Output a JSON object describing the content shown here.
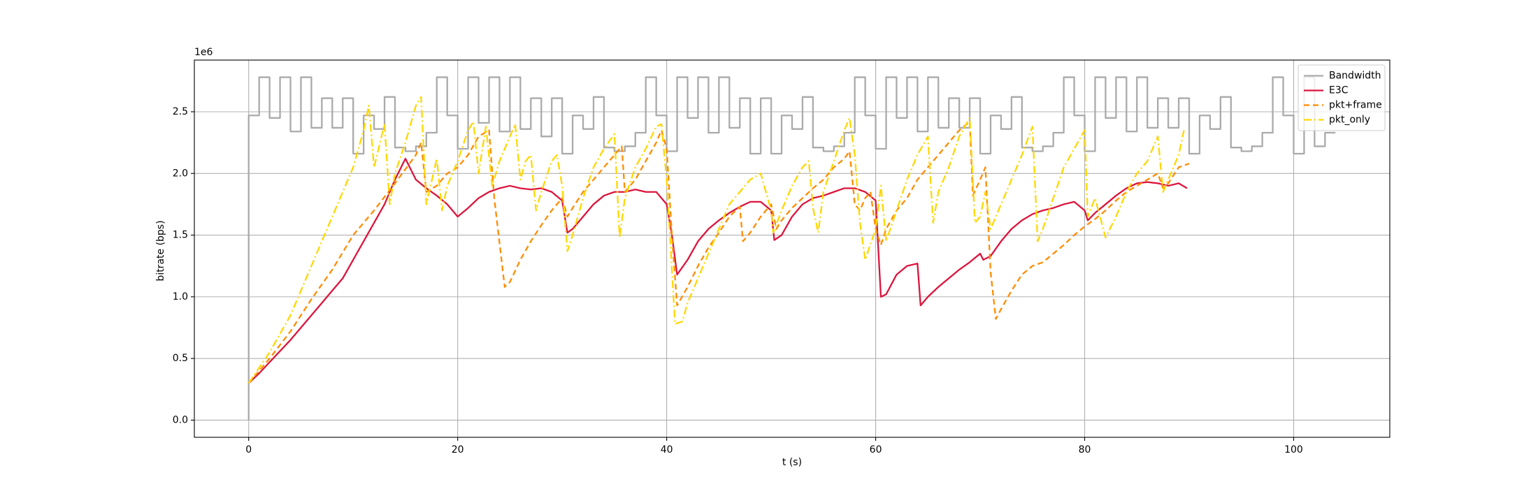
{
  "chart_data": {
    "type": "line",
    "x_label": "t (s)",
    "y_label": "bitrate (bps)",
    "y_offset_label": "1e6",
    "xlim": [
      -5.2,
      109.2
    ],
    "ylim": [
      -139000,
      2919000
    ],
    "xticks": [
      0,
      20,
      40,
      60,
      80,
      100
    ],
    "yticks": [
      {
        "value": 0,
        "label": "0.0"
      },
      {
        "value": 500000,
        "label": "0.5"
      },
      {
        "value": 1000000,
        "label": "1.0"
      },
      {
        "value": 1500000,
        "label": "1.5"
      },
      {
        "value": 2000000,
        "label": "2.0"
      },
      {
        "value": 2500000,
        "label": "2.5"
      }
    ],
    "grid": true,
    "legend": "upper right",
    "series": [
      {
        "name": "Bandwidth",
        "color": "#aaaaaa",
        "linestyle": "solid",
        "step": true,
        "x": [
          0,
          0,
          1,
          2,
          3,
          4,
          5,
          6,
          7,
          8,
          9,
          10,
          11,
          12,
          13,
          14,
          15,
          16,
          17,
          18,
          19,
          20,
          21,
          22,
          23,
          24,
          25,
          26,
          27,
          28,
          29,
          30,
          31,
          32,
          33,
          34,
          35,
          36,
          37,
          38,
          39,
          40,
          41,
          42,
          43,
          44,
          45,
          46,
          47,
          48,
          49,
          50,
          51,
          52,
          53,
          54,
          55,
          56,
          57,
          58,
          59,
          60,
          61,
          62,
          63,
          64,
          65,
          66,
          67,
          68,
          69,
          70,
          71,
          72,
          73,
          74,
          75,
          76,
          77,
          78,
          79,
          80,
          81,
          82,
          83,
          84,
          85,
          86,
          87,
          88,
          89,
          90,
          91,
          92,
          93,
          94,
          95,
          96,
          97,
          98,
          99,
          100,
          101,
          102,
          103,
          104
        ],
        "values": [
          0,
          2470000,
          2780000,
          2450000,
          2780000,
          2340000,
          2780000,
          2370000,
          2610000,
          2370000,
          2610000,
          2160000,
          2470000,
          2360000,
          2620000,
          2210000,
          2180000,
          2220000,
          2330000,
          2780000,
          2470000,
          2200000,
          2780000,
          2410000,
          2780000,
          2340000,
          2780000,
          2360000,
          2610000,
          2300000,
          2610000,
          2160000,
          2470000,
          2360000,
          2620000,
          2210000,
          2180000,
          2220000,
          2330000,
          2780000,
          2470000,
          2180000,
          2780000,
          2450000,
          2780000,
          2330000,
          2780000,
          2370000,
          2610000,
          2160000,
          2610000,
          2160000,
          2470000,
          2360000,
          2620000,
          2210000,
          2180000,
          2220000,
          2330000,
          2780000,
          2470000,
          2200000,
          2780000,
          2450000,
          2780000,
          2340000,
          2780000,
          2370000,
          2610000,
          2370000,
          2610000,
          2160000,
          2470000,
          2360000,
          2620000,
          2210000,
          2180000,
          2220000,
          2330000,
          2780000,
          2470000,
          2180000,
          2780000,
          2450000,
          2780000,
          2340000,
          2780000,
          2370000,
          2610000,
          2370000,
          2610000,
          2160000,
          2470000,
          2360000,
          2620000,
          2210000,
          2180000,
          2220000,
          2330000,
          2780000,
          2470000,
          2160000,
          2780000,
          2220000,
          2330000,
          2330000
        ]
      },
      {
        "name": "E3C",
        "color": "#dc143c",
        "linestyle": "solid",
        "x": [
          0,
          1,
          2,
          3,
          4,
          5,
          6,
          7,
          8,
          9,
          10,
          11,
          12,
          13,
          14,
          15,
          16,
          17,
          18,
          19,
          20,
          21,
          22,
          23,
          24,
          25,
          26,
          27,
          28,
          29,
          30,
          30.5,
          31,
          32,
          33,
          34,
          35,
          36,
          37,
          38,
          39,
          40,
          40.5,
          41,
          42,
          43,
          44,
          45,
          46,
          47,
          48,
          49,
          50,
          50.3,
          51,
          52,
          53,
          54,
          55,
          56,
          57,
          58,
          59,
          60,
          60.5,
          61,
          62,
          63,
          64,
          64.3,
          65,
          66,
          67,
          68,
          69,
          70,
          70.3,
          71,
          72,
          73,
          74,
          75,
          76,
          77,
          78,
          79,
          80,
          80.3,
          81,
          82,
          83,
          84,
          85,
          86,
          87,
          88,
          89,
          89.8
        ],
        "values": [
          300000,
          380000,
          470000,
          560000,
          650000,
          750000,
          850000,
          950000,
          1050000,
          1150000,
          1300000,
          1450000,
          1600000,
          1750000,
          1950000,
          2120000,
          1950000,
          1880000,
          1820000,
          1750000,
          1650000,
          1720000,
          1800000,
          1850000,
          1880000,
          1900000,
          1880000,
          1870000,
          1880000,
          1850000,
          1780000,
          1520000,
          1550000,
          1650000,
          1750000,
          1820000,
          1850000,
          1850000,
          1870000,
          1850000,
          1850000,
          1750000,
          1500000,
          1180000,
          1300000,
          1450000,
          1550000,
          1620000,
          1680000,
          1730000,
          1770000,
          1770000,
          1700000,
          1460000,
          1500000,
          1650000,
          1750000,
          1800000,
          1820000,
          1850000,
          1880000,
          1880000,
          1850000,
          1780000,
          1000000,
          1020000,
          1180000,
          1250000,
          1270000,
          930000,
          1000000,
          1080000,
          1150000,
          1220000,
          1280000,
          1350000,
          1300000,
          1330000,
          1450000,
          1550000,
          1620000,
          1670000,
          1700000,
          1720000,
          1750000,
          1770000,
          1700000,
          1620000,
          1680000,
          1750000,
          1820000,
          1880000,
          1920000,
          1930000,
          1920000,
          1900000,
          1920000,
          1880000
        ]
      },
      {
        "name": "pkt+frame",
        "color": "#ff8c00",
        "linestyle": "dashed",
        "x": [
          0,
          2,
          4,
          6,
          8,
          10,
          12,
          14,
          16,
          16.5,
          17,
          18,
          19,
          20,
          21,
          22,
          23,
          23.5,
          24.5,
          25,
          26,
          27,
          28,
          29,
          30,
          30.5,
          31,
          32,
          33,
          34,
          35,
          35.7,
          36,
          37,
          38,
          39,
          39.5,
          40,
          40.5,
          41,
          42,
          43,
          44,
          45,
          46,
          47,
          47.3,
          48,
          49,
          50,
          50.5,
          51,
          52,
          53,
          54,
          55,
          56,
          57,
          57.5,
          58,
          58.5,
          59,
          59.5,
          60,
          60.5,
          61,
          62,
          63,
          64,
          65,
          66,
          67,
          68,
          69,
          69.3,
          70,
          70.5,
          71,
          71.5,
          72,
          73,
          74,
          75,
          76,
          77,
          78,
          79,
          80,
          81,
          82,
          83,
          84,
          85,
          86,
          87,
          87.5,
          88,
          89,
          90
        ],
        "values": [
          300000,
          500000,
          720000,
          980000,
          1220000,
          1500000,
          1700000,
          1920000,
          2150000,
          2250000,
          1850000,
          1900000,
          2000000,
          2050000,
          2150000,
          2300000,
          2350000,
          1800000,
          1080000,
          1120000,
          1300000,
          1450000,
          1580000,
          1700000,
          1800000,
          1650000,
          1720000,
          1850000,
          1950000,
          2050000,
          2150000,
          2220000,
          1850000,
          1950000,
          2100000,
          2250000,
          2350000,
          2200000,
          1500000,
          930000,
          1080000,
          1250000,
          1400000,
          1520000,
          1650000,
          1730000,
          1450000,
          1520000,
          1650000,
          1750000,
          1550000,
          1620000,
          1720000,
          1800000,
          1880000,
          1950000,
          2050000,
          2120000,
          2180000,
          1750000,
          1700000,
          1800000,
          1850000,
          1550000,
          1420000,
          1550000,
          1700000,
          1800000,
          1950000,
          2050000,
          2150000,
          2250000,
          2350000,
          2420000,
          1820000,
          1950000,
          2050000,
          1200000,
          820000,
          900000,
          1050000,
          1180000,
          1250000,
          1280000,
          1350000,
          1420000,
          1500000,
          1570000,
          1630000,
          1700000,
          1780000,
          1850000,
          1900000,
          1950000,
          2000000,
          1880000,
          1920000,
          2050000,
          2080000
        ]
      },
      {
        "name": "pkt_only",
        "color": "#ffd700",
        "linestyle": "dashdot",
        "x": [
          0,
          2,
          4,
          6,
          8,
          10,
          11,
          11.5,
          12,
          13,
          13.5,
          14,
          15,
          16,
          16.5,
          17,
          18,
          18.5,
          19,
          20,
          21,
          21.5,
          22,
          22.7,
          23.3,
          24,
          25,
          25.5,
          26,
          26.5,
          27,
          27.5,
          28,
          29,
          29.5,
          30,
          30.5,
          31,
          32,
          33,
          34,
          35,
          35.5,
          36,
          37,
          38,
          39,
          39.5,
          40,
          40.8,
          41.5,
          42,
          43,
          44,
          45,
          46,
          47,
          48,
          49,
          50,
          50.2,
          51,
          52,
          53,
          53.6,
          54,
          54.5,
          55,
          56,
          57,
          57.5,
          58,
          58.5,
          59,
          60,
          60.5,
          61,
          62,
          63,
          64,
          65,
          65.5,
          66,
          67,
          68,
          69,
          69.5,
          70,
          70.5,
          71,
          72,
          73,
          74,
          75,
          75.5,
          76,
          77,
          78,
          79,
          80,
          80.3,
          81,
          82,
          83,
          84,
          85,
          86,
          87,
          87.5,
          88,
          89,
          89.5
        ],
        "values": [
          300000,
          550000,
          850000,
          1250000,
          1650000,
          2050000,
          2350000,
          2550000,
          2050000,
          2400000,
          1750000,
          2000000,
          2250000,
          2550000,
          2620000,
          1750000,
          2120000,
          1700000,
          1900000,
          2100000,
          2350000,
          2420000,
          2000000,
          2380000,
          1900000,
          2100000,
          2300000,
          2400000,
          1950000,
          2100000,
          2150000,
          1700000,
          1850000,
          2100000,
          2150000,
          1900000,
          1370000,
          1500000,
          1800000,
          2050000,
          2200000,
          2320000,
          1480000,
          1800000,
          2050000,
          2200000,
          2380000,
          2400000,
          1950000,
          780000,
          800000,
          950000,
          1150000,
          1350000,
          1550000,
          1750000,
          1850000,
          1950000,
          2000000,
          1700000,
          1520000,
          1700000,
          1900000,
          2050000,
          2100000,
          1720000,
          1520000,
          1850000,
          2100000,
          2350000,
          2450000,
          2150000,
          1600000,
          1300000,
          1550000,
          1900000,
          1450000,
          1700000,
          1950000,
          2150000,
          2300000,
          1600000,
          1850000,
          2050000,
          2300000,
          2450000,
          1600000,
          1650000,
          1850000,
          1550000,
          1750000,
          1950000,
          2150000,
          2380000,
          1450000,
          1550000,
          1800000,
          2050000,
          2200000,
          2350000,
          1650000,
          1800000,
          1480000,
          1650000,
          1850000,
          2000000,
          2100000,
          2300000,
          1850000,
          1950000,
          2150000,
          2350000
        ]
      }
    ]
  }
}
